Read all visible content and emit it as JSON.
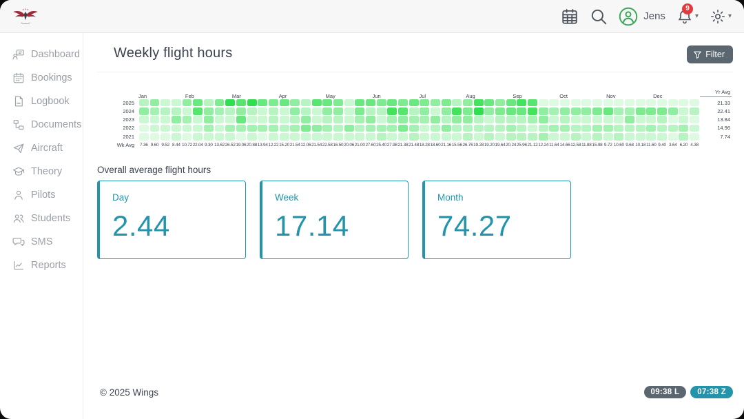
{
  "topbar": {
    "user_name": "Jens",
    "notification_count": "9",
    "icons": [
      "calendar-icon",
      "search-icon",
      "user-avatar-icon",
      "bell-icon",
      "gear-icon"
    ]
  },
  "sidebar": {
    "items": [
      {
        "label": "Dashboard",
        "icon": "dashboard-icon"
      },
      {
        "label": "Bookings",
        "icon": "bookings-calendar-icon"
      },
      {
        "label": "Logbook",
        "icon": "logbook-icon"
      },
      {
        "label": "Documents",
        "icon": "documents-icon"
      },
      {
        "label": "Aircraft",
        "icon": "aircraft-icon"
      },
      {
        "label": "Theory",
        "icon": "theory-graduation-icon"
      },
      {
        "label": "Pilots",
        "icon": "pilots-icon"
      },
      {
        "label": "Students",
        "icon": "students-icon"
      },
      {
        "label": "SMS",
        "icon": "sms-icon"
      },
      {
        "label": "Reports",
        "icon": "reports-icon"
      }
    ]
  },
  "main": {
    "title": "Weekly flight hours",
    "filter_button": "Filter",
    "overall_label": "Overall average flight hours",
    "cards": [
      {
        "label": "Day",
        "value": "2.44"
      },
      {
        "label": "Week",
        "value": "17.14"
      },
      {
        "label": "Month",
        "value": "74.27"
      }
    ],
    "footer": {
      "copyright": "© 2025 Wings",
      "local_time": "09:38 L",
      "zulu_time": "07:38 Z"
    }
  },
  "colors": {
    "accent_teal": "#2494ab",
    "heat_green": "#2cde4b",
    "badge_red": "#e03b3f",
    "avatar_green": "#3fa75c",
    "filter_gray": "#5b6770",
    "logo_red": "#9e2b3a"
  },
  "chart_data": {
    "type": "heatmap",
    "title": "Weekly flight hours",
    "x_unit": "week-of-year (52 columns)",
    "months": [
      {
        "label": "Jan",
        "week": 0
      },
      {
        "label": "Feb",
        "week": 4.33
      },
      {
        "label": "Mar",
        "week": 8.67
      },
      {
        "label": "Apr",
        "week": 13
      },
      {
        "label": "May",
        "week": 17.33
      },
      {
        "label": "Jun",
        "week": 21.67
      },
      {
        "label": "Jul",
        "week": 26
      },
      {
        "label": "Aug",
        "week": 30.33
      },
      {
        "label": "Sep",
        "week": 34.67
      },
      {
        "label": "Oct",
        "week": 39
      },
      {
        "label": "Nov",
        "week": 43.33
      },
      {
        "label": "Dec",
        "week": 47.67
      }
    ],
    "yr_avg_header": "Yr Avg",
    "wk_avg_label": "Wk Avg",
    "rows": [
      {
        "year": "2025",
        "yr_avg": "21.33",
        "intensity": [
          3,
          5,
          2,
          2,
          5,
          7,
          3,
          6,
          10,
          8,
          10,
          7,
          6,
          7,
          5,
          3,
          8,
          7,
          6,
          2,
          7,
          7,
          6,
          7,
          6,
          7,
          6,
          5,
          6,
          3,
          5,
          9,
          7,
          5,
          7,
          9,
          8,
          1,
          1,
          1,
          1,
          1,
          1,
          1,
          1,
          1,
          1,
          1,
          1,
          1,
          1,
          1
        ]
      },
      {
        "year": "2024",
        "yr_avg": "22.41",
        "intensity": [
          5,
          4,
          3,
          3,
          2,
          8,
          5,
          4,
          3,
          5,
          3,
          2,
          3,
          2,
          5,
          3,
          2,
          5,
          5,
          2,
          6,
          3,
          3,
          9,
          8,
          3,
          5,
          2,
          5,
          9,
          6,
          10,
          5,
          6,
          7,
          7,
          9,
          5,
          4,
          5,
          5,
          5,
          6,
          7,
          4,
          4,
          6,
          6,
          6,
          5,
          2,
          3
        ]
      },
      {
        "year": "2023",
        "yr_avg": "13.84",
        "intensity": [
          2,
          2,
          2,
          5,
          4,
          2,
          5,
          2,
          2,
          7,
          2,
          2,
          3,
          2,
          3,
          5,
          2,
          3,
          3,
          2,
          4,
          5,
          2,
          4,
          5,
          4,
          4,
          5,
          3,
          5,
          5,
          3,
          2,
          3,
          3,
          3,
          4,
          5,
          2,
          3,
          2,
          2,
          2,
          2,
          2,
          5,
          2,
          2,
          3,
          1,
          2,
          1
        ]
      },
      {
        "year": "2022",
        "yr_avg": "14.96",
        "intensity": [
          1,
          2,
          2,
          2,
          2,
          2,
          4,
          2,
          4,
          4,
          4,
          4,
          4,
          3,
          4,
          6,
          5,
          4,
          3,
          5,
          3,
          4,
          4,
          4,
          6,
          4,
          2,
          3,
          5,
          3,
          3,
          3,
          3,
          3,
          4,
          3,
          2,
          3,
          4,
          4,
          3,
          3,
          4,
          4,
          3,
          3,
          3,
          4,
          3,
          3,
          4,
          2
        ]
      },
      {
        "year": "2021",
        "yr_avg": "7.74",
        "intensity": [
          1,
          1,
          1,
          2,
          1,
          2,
          2,
          2,
          2,
          1,
          2,
          1,
          2,
          2,
          2,
          2,
          2,
          2,
          2,
          2,
          2,
          2,
          3,
          2,
          2,
          3,
          2,
          2,
          2,
          2,
          3,
          2,
          3,
          2,
          3,
          3,
          3,
          4,
          2,
          2,
          3,
          2,
          3,
          2,
          3,
          2,
          2,
          2,
          2,
          1,
          3,
          1
        ]
      }
    ],
    "wk_avg": [
      "7.36",
      "9.60",
      "9.52",
      "8.44",
      "10.72",
      "22.04",
      "9.30",
      "13.62",
      "26.52",
      "19.06",
      "20.88",
      "13.94",
      "12.22",
      "15.20",
      "21.54",
      "12.06",
      "21.54",
      "22.58",
      "16.50",
      "20.06",
      "21.00",
      "27.60",
      "25.40",
      "27.98",
      "21.38",
      "21.48",
      "18.28",
      "18.60",
      "21.16",
      "15.56",
      "26.76",
      "19.28",
      "19.20",
      "19.64",
      "20.24",
      "25.96",
      "21.12",
      "12.24",
      "11.64",
      "14.66",
      "12.58",
      "11.88",
      "15.98",
      "9.72",
      "10.60",
      "9.68",
      "10.18",
      "11.60",
      "9.40",
      "3.64",
      "6.20",
      "4.38"
    ],
    "intensity_scale": "0 = no hours (white) … 10 = max hours (vivid green #2cde4b)"
  }
}
